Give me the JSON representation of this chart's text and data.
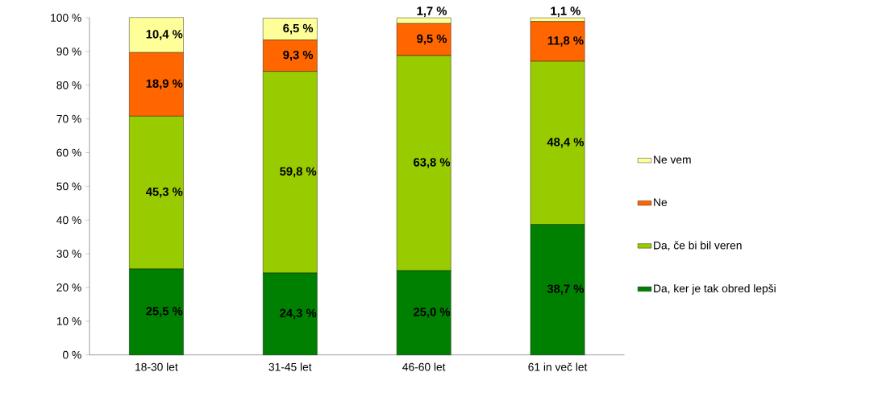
{
  "chart_data": {
    "type": "bar",
    "stacked": true,
    "categories": [
      "18-30 let",
      "31-45 let",
      "46-60 let",
      "61 in več let"
    ],
    "series": [
      {
        "name": "Da, ker je tak obred lepši",
        "color": "#008000",
        "values": [
          25.5,
          24.3,
          25.0,
          38.7
        ],
        "value_labels": [
          "25,5 %",
          "24,3 %",
          "25,0 %",
          "38,7 %"
        ]
      },
      {
        "name": "Da, če bi bil veren",
        "color": "#99cc00",
        "values": [
          45.3,
          59.8,
          63.8,
          48.4
        ],
        "value_labels": [
          "45,3 %",
          "59,8 %",
          "63,8 %",
          "48,4 %"
        ]
      },
      {
        "name": "Ne",
        "color": "#ff6600",
        "values": [
          18.9,
          9.3,
          9.5,
          11.8
        ],
        "value_labels": [
          "18,9 %",
          "9,3 %",
          "9,5 %",
          "11,8 %"
        ]
      },
      {
        "name": "Ne vem",
        "color": "#ffff99",
        "values": [
          10.4,
          6.5,
          1.7,
          1.1
        ],
        "value_labels": [
          "10,4 %",
          "6,5 %",
          "1,7 %",
          "1,1 %"
        ]
      }
    ],
    "ylim": [
      0,
      100.1
    ],
    "yticks": [
      {
        "value": 0,
        "label": "0 %"
      },
      {
        "value": 10,
        "label": "10 %"
      },
      {
        "value": 20,
        "label": "20 %"
      },
      {
        "value": 30,
        "label": "30 %"
      },
      {
        "value": 40,
        "label": "40 %"
      },
      {
        "value": 50,
        "label": "50 %"
      },
      {
        "value": 60,
        "label": "60 %"
      },
      {
        "value": 70,
        "label": "70 %"
      },
      {
        "value": 80,
        "label": "80 %"
      },
      {
        "value": 90,
        "label": "90 %"
      },
      {
        "value": 100,
        "label": "100 %"
      }
    ],
    "legend": "right"
  }
}
